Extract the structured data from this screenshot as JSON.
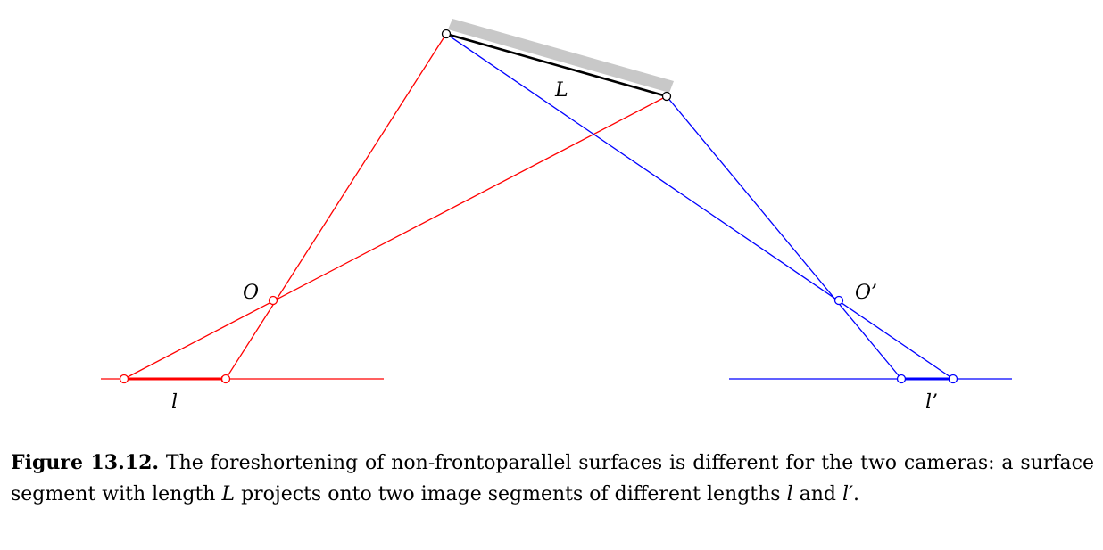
{
  "figure": {
    "labels": {
      "surface": "L",
      "center_left": "O",
      "center_right": "O’",
      "image_left": "l",
      "image_right": "l’"
    },
    "colors": {
      "left_camera": "#ff0000",
      "right_camera": "#0000ff",
      "surface_shade": "#c8c8c8",
      "segment": "#000000"
    }
  },
  "caption": {
    "label": "Figure 13.12.",
    "text_1": " The foreshortening of non-frontoparallel surfaces is different for the two cameras: a surface segment with length ",
    "math_L": "L",
    "text_2": " projects onto two image segments of different lengths ",
    "math_l": "l",
    "text_3": " and ",
    "math_lprime": "l′",
    "text_4": "."
  }
}
